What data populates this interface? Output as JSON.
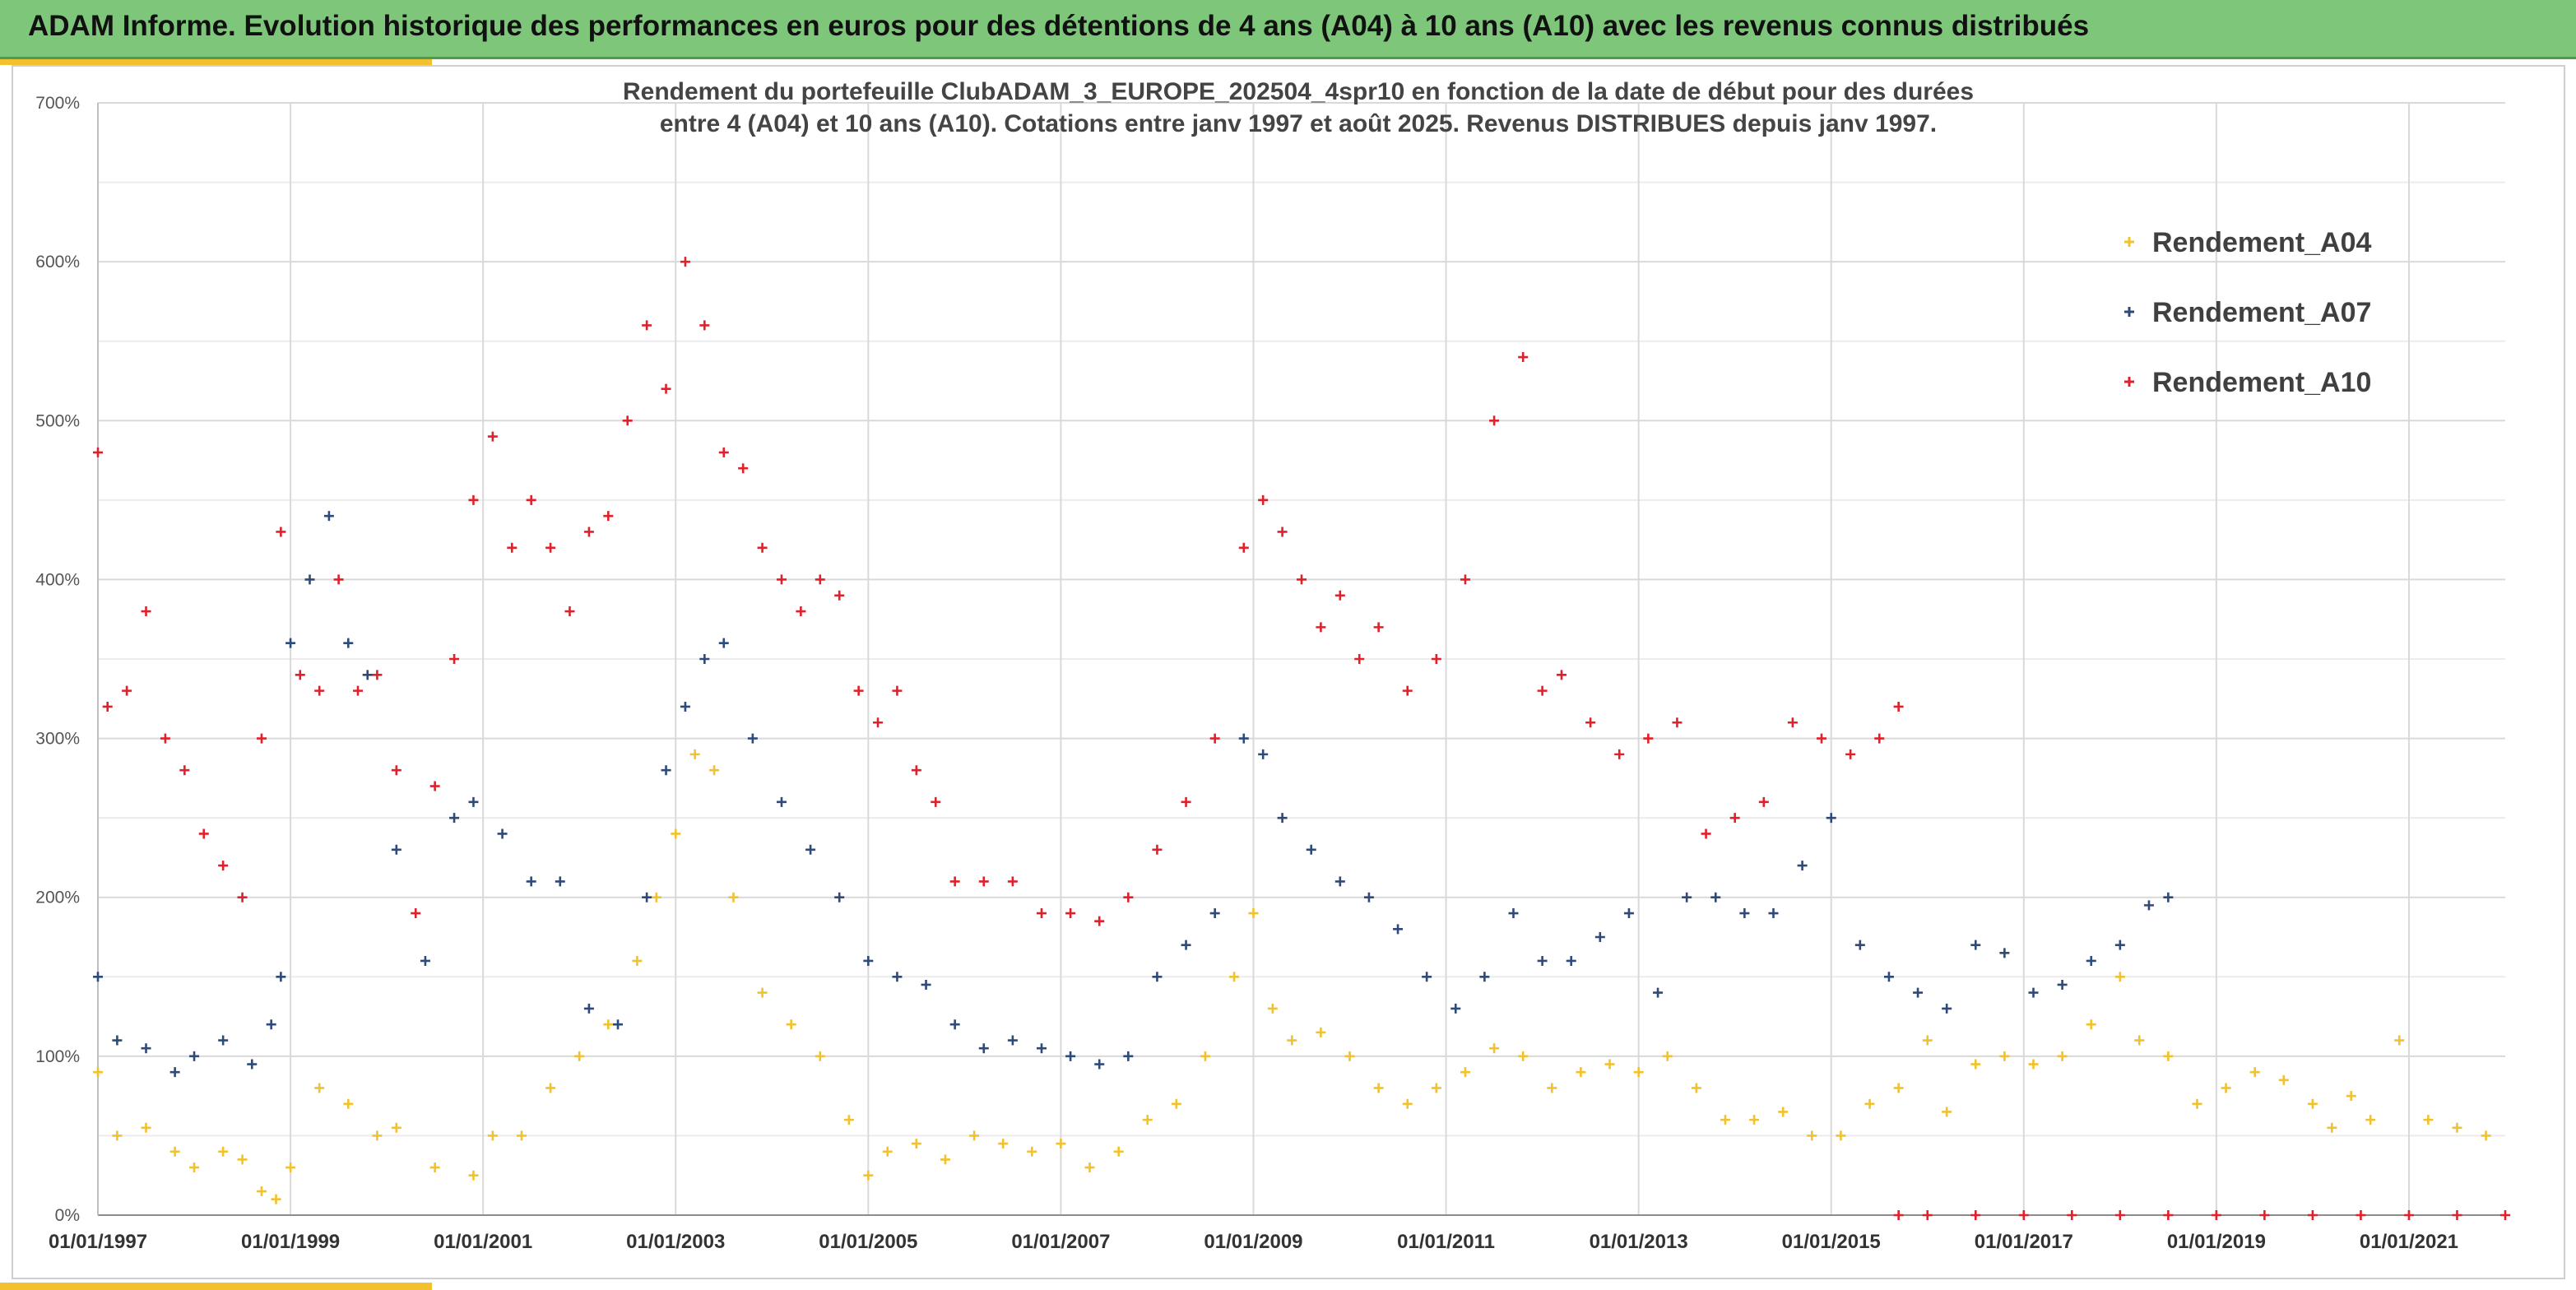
{
  "banner": {
    "title": "ADAM Informe. Evolution historique des performances en euros pour des détentions de 4 ans (A04) à 10 ans (A10) avec les revenus connus distribués"
  },
  "colors": {
    "A04": "#f2c12e",
    "A07": "#2e4a7a",
    "A10": "#e0202a",
    "banner": "#7dc67a",
    "accent": "#f2c12e"
  },
  "chart_data": {
    "type": "scatter",
    "subtitle_line1": "Rendement du portefeuille ClubADAM_3_EUROPE_202504_4spr10  en fonction de la date de début pour des durées",
    "subtitle_line2": "entre 4 (A04) et 10 ans (A10). Cotations entre janv 1997 et août 2025. Revenus DISTRIBUES depuis janv 1997.",
    "x_tick_labels": [
      "01/01/1997",
      "01/01/1999",
      "01/01/2001",
      "01/01/2003",
      "01/01/2005",
      "01/01/2007",
      "01/01/2009",
      "01/01/2011",
      "01/01/2013",
      "01/01/2015",
      "01/01/2017",
      "01/01/2019",
      "01/01/2021"
    ],
    "y_tick_labels": [
      "0%",
      "100%",
      "200%",
      "300%",
      "400%",
      "500%",
      "600%",
      "700%"
    ],
    "xlim": [
      1997.0,
      2022.0
    ],
    "ylim": [
      0,
      700
    ],
    "grid": true,
    "legend_position": "top-right",
    "series": [
      {
        "name": "Rendement_A04",
        "color": "#f2c12e",
        "x": [
          1997.0,
          1997.2,
          1997.5,
          1997.8,
          1998.0,
          1998.3,
          1998.5,
          1998.7,
          1998.85,
          1999.0,
          1999.3,
          1999.6,
          1999.9,
          2000.1,
          2000.5,
          2000.9,
          2001.1,
          2001.4,
          2001.7,
          2002.0,
          2002.3,
          2002.6,
          2002.8,
          2003.0,
          2003.2,
          2003.4,
          2003.6,
          2003.9,
          2004.2,
          2004.5,
          2004.8,
          2005.0,
          2005.2,
          2005.5,
          2005.8,
          2006.1,
          2006.4,
          2006.7,
          2007.0,
          2007.3,
          2007.6,
          2007.9,
          2008.2,
          2008.5,
          2008.8,
          2009.0,
          2009.2,
          2009.4,
          2009.7,
          2010.0,
          2010.3,
          2010.6,
          2010.9,
          2011.2,
          2011.5,
          2011.8,
          2012.1,
          2012.4,
          2012.7,
          2013.0,
          2013.3,
          2013.6,
          2013.9,
          2014.2,
          2014.5,
          2014.8,
          2015.1,
          2015.4,
          2015.7,
          2016.0,
          2016.2,
          2016.5,
          2016.8,
          2017.1,
          2017.4,
          2017.7,
          2018.0,
          2018.2,
          2018.5,
          2018.8,
          2019.1,
          2019.4,
          2019.7,
          2020.0,
          2020.2,
          2020.4,
          2020.6,
          2020.9,
          2021.2,
          2021.5,
          2021.8
        ],
        "y": [
          90,
          50,
          55,
          40,
          30,
          40,
          35,
          15,
          10,
          30,
          80,
          70,
          50,
          55,
          30,
          25,
          50,
          50,
          80,
          100,
          120,
          160,
          200,
          240,
          290,
          280,
          200,
          140,
          120,
          100,
          60,
          25,
          40,
          45,
          35,
          50,
          45,
          40,
          45,
          30,
          40,
          60,
          70,
          100,
          150,
          190,
          130,
          110,
          115,
          100,
          80,
          70,
          80,
          90,
          105,
          100,
          80,
          90,
          95,
          90,
          100,
          80,
          60,
          60,
          65,
          50,
          50,
          70,
          80,
          110,
          65,
          95,
          100,
          95,
          100,
          120,
          150,
          110,
          100,
          70,
          80,
          90,
          85,
          70,
          55,
          75,
          60,
          110,
          60,
          55,
          50
        ]
      },
      {
        "name": "Rendement_A07",
        "color": "#2e4a7a",
        "x": [
          1997.0,
          1997.2,
          1997.5,
          1997.8,
          1998.0,
          1998.3,
          1998.6,
          1998.8,
          1998.9,
          1999.0,
          1999.2,
          1999.4,
          1999.6,
          1999.8,
          2000.1,
          2000.4,
          2000.7,
          2000.9,
          2001.2,
          2001.5,
          2001.8,
          2002.1,
          2002.4,
          2002.7,
          2002.9,
          2003.1,
          2003.3,
          2003.5,
          2003.8,
          2004.1,
          2004.4,
          2004.7,
          2005.0,
          2005.3,
          2005.6,
          2005.9,
          2006.2,
          2006.5,
          2006.8,
          2007.1,
          2007.4,
          2007.7,
          2008.0,
          2008.3,
          2008.6,
          2008.9,
          2009.1,
          2009.3,
          2009.6,
          2009.9,
          2010.2,
          2010.5,
          2010.8,
          2011.1,
          2011.4,
          2011.7,
          2012.0,
          2012.3,
          2012.6,
          2012.9,
          2013.2,
          2013.5,
          2013.8,
          2014.1,
          2014.4,
          2014.7,
          2015.0,
          2015.3,
          2015.6,
          2015.9,
          2016.2,
          2016.5,
          2016.8,
          2017.1,
          2017.4,
          2017.7,
          2018.0,
          2018.3,
          2018.5
        ],
        "y": [
          150,
          110,
          105,
          90,
          100,
          110,
          95,
          120,
          150,
          360,
          400,
          440,
          360,
          340,
          230,
          160,
          250,
          260,
          240,
          210,
          210,
          130,
          120,
          200,
          280,
          320,
          350,
          360,
          300,
          260,
          230,
          200,
          160,
          150,
          145,
          120,
          105,
          110,
          105,
          100,
          95,
          100,
          150,
          170,
          190,
          300,
          290,
          250,
          230,
          210,
          200,
          180,
          150,
          130,
          150,
          190,
          160,
          160,
          175,
          190,
          140,
          200,
          200,
          190,
          190,
          220,
          250,
          170,
          150,
          140,
          130,
          170,
          165,
          140,
          145,
          160,
          170,
          195,
          200
        ]
      },
      {
        "name": "Rendement_A10",
        "color": "#e0202a",
        "x": [
          1997.0,
          1997.1,
          1997.3,
          1997.5,
          1997.7,
          1997.9,
          1998.1,
          1998.3,
          1998.5,
          1998.7,
          1998.9,
          1999.1,
          1999.3,
          1999.5,
          1999.7,
          1999.9,
          2000.1,
          2000.3,
          2000.5,
          2000.7,
          2000.9,
          2001.1,
          2001.3,
          2001.5,
          2001.7,
          2001.9,
          2002.1,
          2002.3,
          2002.5,
          2002.7,
          2002.9,
          2003.1,
          2003.3,
          2003.5,
          2003.7,
          2003.9,
          2004.1,
          2004.3,
          2004.5,
          2004.7,
          2004.9,
          2005.1,
          2005.3,
          2005.5,
          2005.7,
          2005.9,
          2006.2,
          2006.5,
          2006.8,
          2007.1,
          2007.4,
          2007.7,
          2008.0,
          2008.3,
          2008.6,
          2008.9,
          2009.1,
          2009.3,
          2009.5,
          2009.7,
          2009.9,
          2010.1,
          2010.3,
          2010.6,
          2010.9,
          2011.2,
          2011.5,
          2011.8,
          2012.0,
          2012.2,
          2012.5,
          2012.8,
          2013.1,
          2013.4,
          2013.7,
          2014.0,
          2014.3,
          2014.6,
          2014.9,
          2015.2,
          2015.5,
          2015.7
        ],
        "y": [
          480,
          320,
          330,
          380,
          300,
          280,
          240,
          220,
          200,
          300,
          430,
          340,
          330,
          400,
          330,
          340,
          280,
          190,
          270,
          350,
          450,
          490,
          420,
          450,
          420,
          380,
          430,
          440,
          500,
          560,
          520,
          600,
          560,
          480,
          470,
          420,
          400,
          380,
          400,
          390,
          330,
          310,
          330,
          280,
          260,
          210,
          210,
          210,
          190,
          190,
          185,
          200,
          230,
          260,
          300,
          420,
          450,
          430,
          400,
          370,
          390,
          350,
          370,
          330,
          350,
          400,
          500,
          540,
          330,
          340,
          310,
          290,
          300,
          310,
          240,
          250,
          260,
          310,
          300,
          290,
          300,
          320
        ]
      },
      {
        "name": "",
        "color": "#e0202a",
        "x": [
          2015.7,
          2016.0,
          2016.5,
          2017.0,
          2017.5,
          2018.0,
          2018.5,
          2019.0,
          2019.5,
          2020.0,
          2020.5,
          2021.0,
          2021.5,
          2022.0
        ],
        "y": [
          0,
          0,
          0,
          0,
          0,
          0,
          0,
          0,
          0,
          0,
          0,
          0,
          0,
          0
        ]
      }
    ]
  }
}
